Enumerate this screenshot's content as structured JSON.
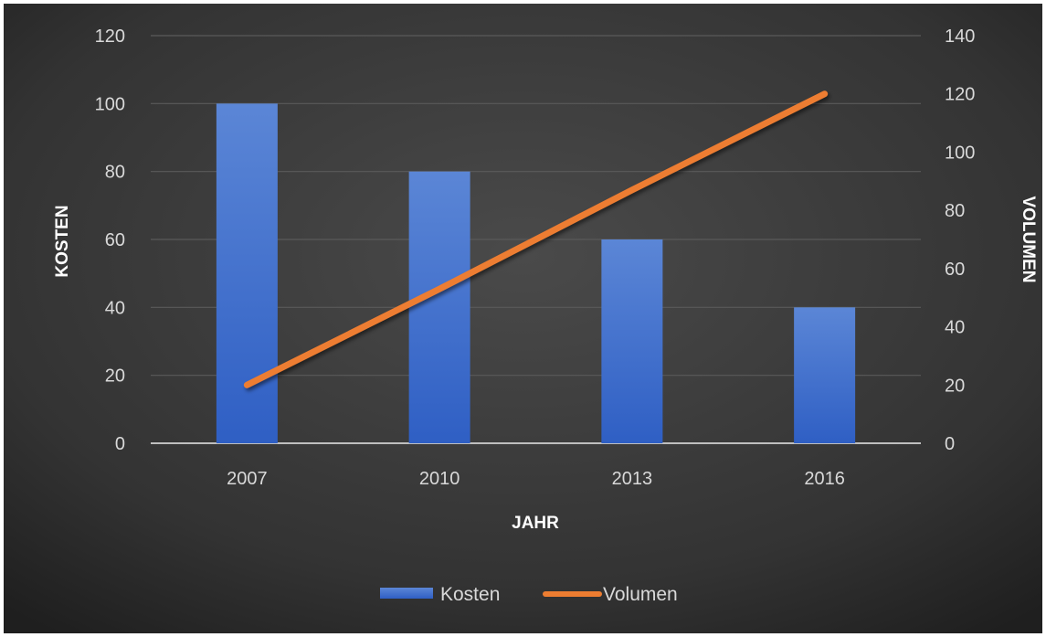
{
  "chart_data": {
    "type": "bar",
    "categories": [
      "2007",
      "2010",
      "2013",
      "2016"
    ],
    "series": [
      {
        "name": "Kosten",
        "kind": "bar",
        "axis": "left",
        "values": [
          100,
          80,
          60,
          40
        ],
        "color": "#4472c4"
      },
      {
        "name": "Volumen",
        "kind": "line",
        "axis": "right",
        "values": [
          20,
          53,
          87,
          120
        ],
        "color": "#ed7d31"
      }
    ],
    "xlabel": "JAHR",
    "ylabel": "KOSTEN",
    "y2label": "VOLUMEN",
    "ylim": [
      0,
      120
    ],
    "y2lim": [
      0,
      140
    ],
    "yticks": [
      "0",
      "20",
      "40",
      "60",
      "80",
      "100",
      "120"
    ],
    "y2ticks": [
      "0",
      "20",
      "40",
      "60",
      "80",
      "100",
      "120",
      "140"
    ],
    "grid": true,
    "legend": "bottom-center",
    "background": "#3a3a3a"
  }
}
